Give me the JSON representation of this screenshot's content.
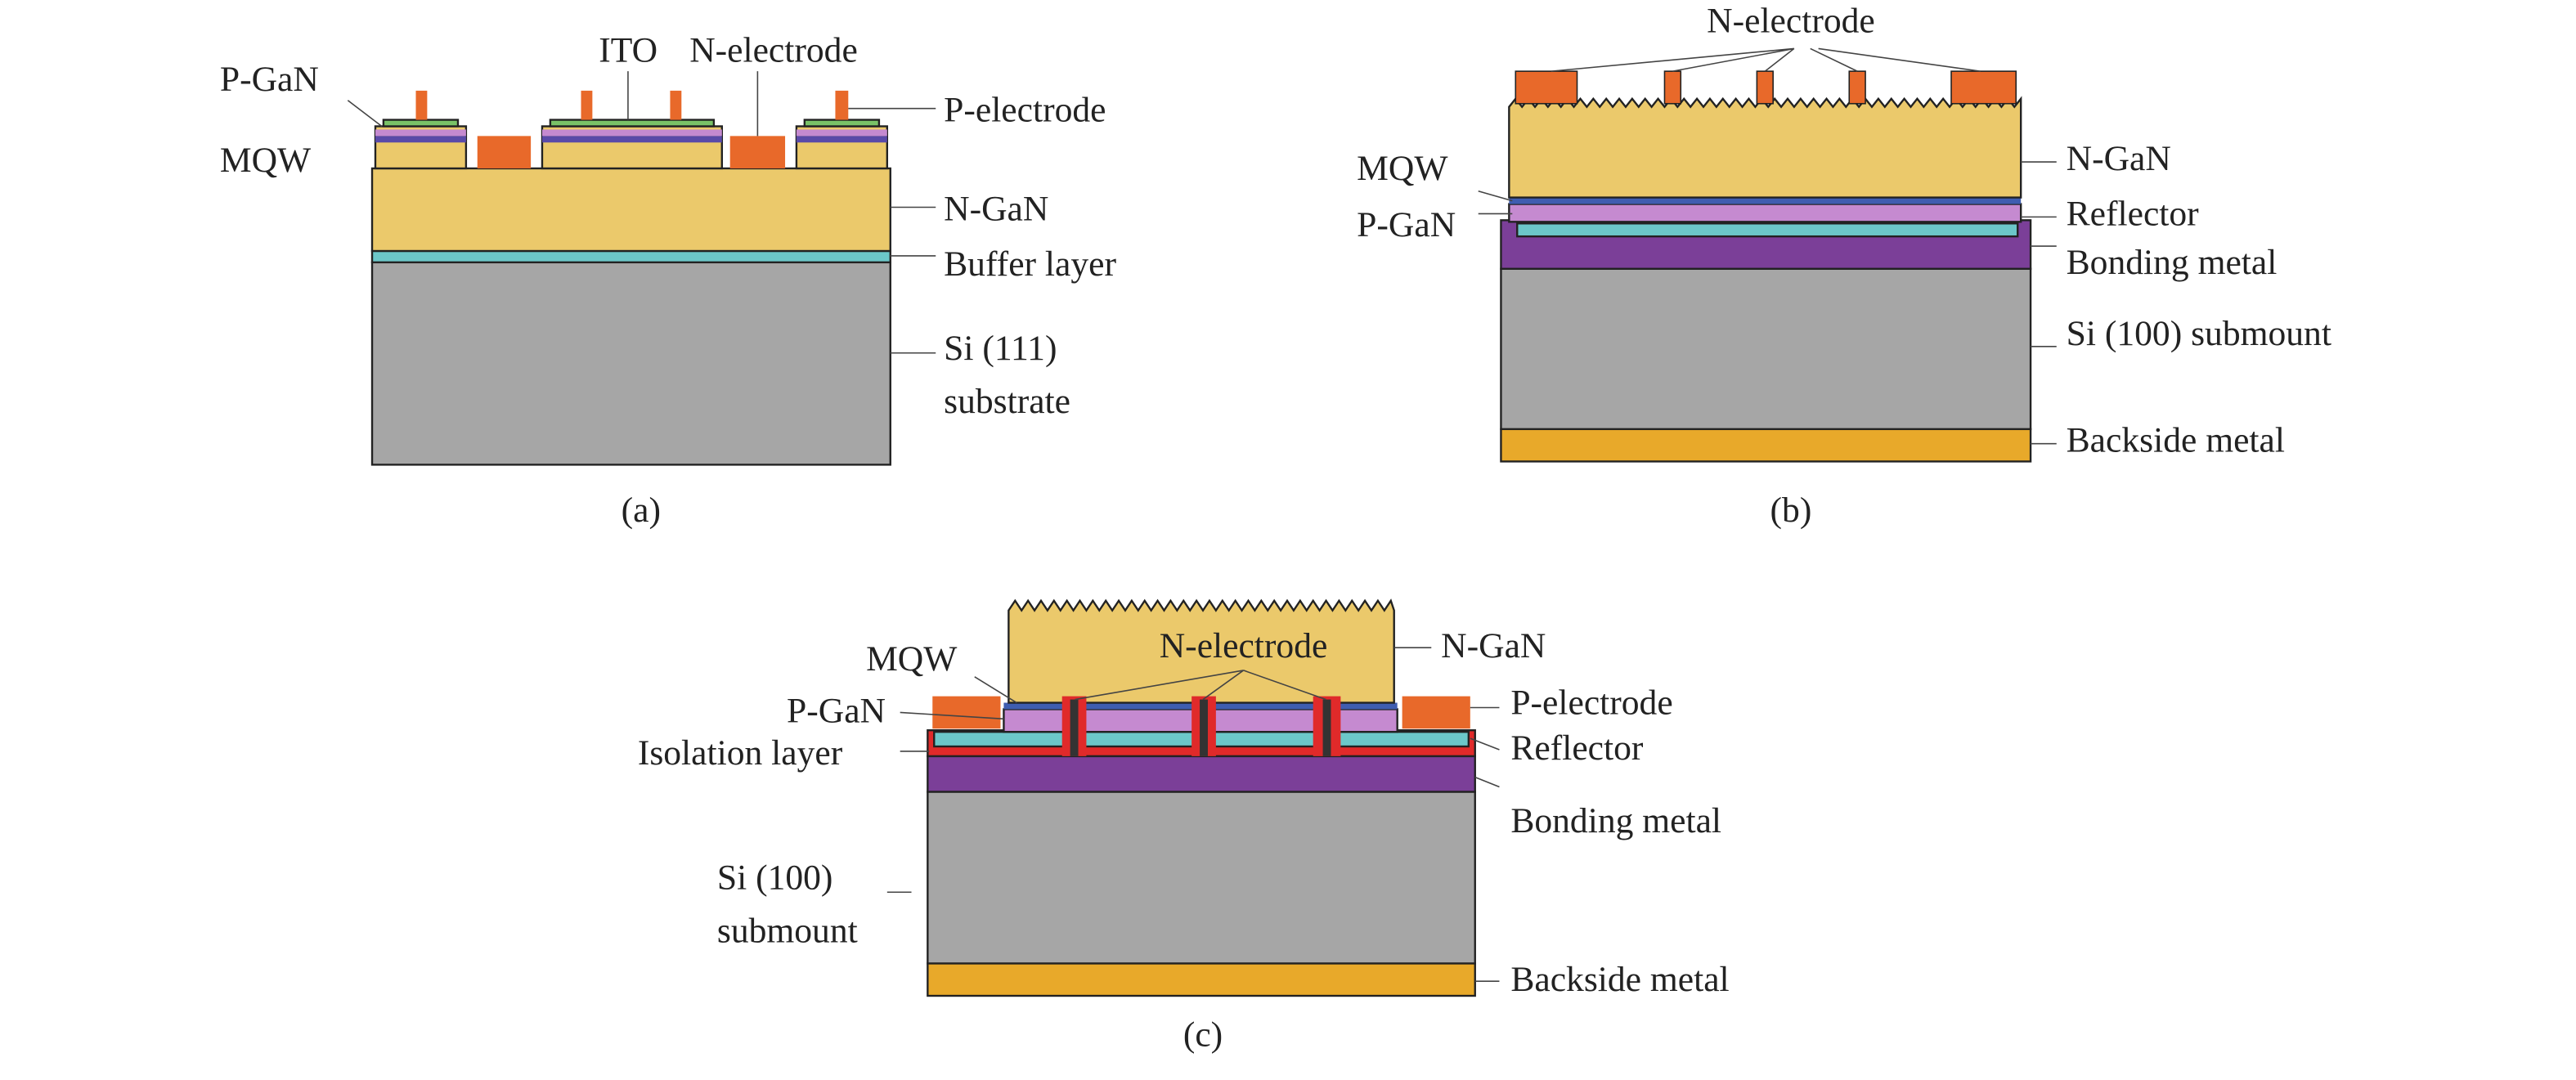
{
  "panels": [
    {
      "caption": "(a)",
      "labels": [
        "P-GaN",
        "MQW",
        "ITO",
        "N-electrode",
        "P-electrode",
        "N-GaN",
        "Buffer layer",
        "Si (111)",
        "substrate"
      ]
    },
    {
      "caption": "(b)",
      "labels": [
        "N-electrode",
        "MQW",
        "P-GaN",
        "N-GaN",
        "Reflector",
        "Bonding metal",
        "Si (100) submount",
        "Backside metal"
      ]
    },
    {
      "caption": "(c)",
      "labels": [
        "MQW",
        "P-GaN",
        "Isolation layer",
        "N-electrode",
        "N-GaN",
        "P-electrode",
        "Reflector",
        "Bonding metal",
        "Si (100)",
        "submount",
        "Backside metal"
      ]
    }
  ]
}
